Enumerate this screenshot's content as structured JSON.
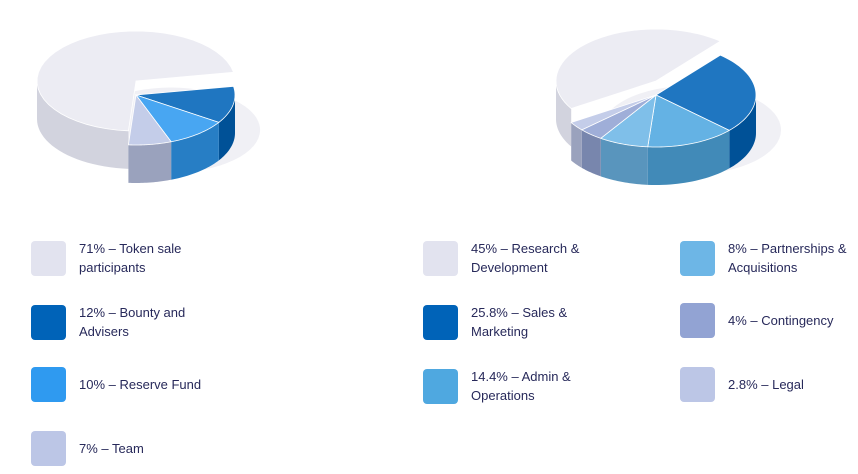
{
  "chart_data": [
    {
      "type": "pie",
      "style": "3d",
      "legend_position": "bottom",
      "slices": [
        {
          "label": "71% – Token sale participants",
          "value": 71,
          "color": "#e2e3ef"
        },
        {
          "label": "12% – Bounty and Advisers",
          "value": 12,
          "color": "#0063b8"
        },
        {
          "label": "10% – Reserve Fund",
          "value": 10,
          "color": "#2f9af0"
        },
        {
          "label": "7% – Team",
          "value": 7,
          "color": "#bcc6e6"
        }
      ]
    },
    {
      "type": "pie",
      "style": "3d",
      "legend_position": "bottom",
      "slices": [
        {
          "label": "45% – Research & Development",
          "value": 45,
          "color": "#e2e3ef"
        },
        {
          "label": "25.8% – Sales & Marketing",
          "value": 25.8,
          "color": "#0063b8"
        },
        {
          "label": "14.4% – Admin & Operations",
          "value": 14.4,
          "color": "#4fa8e0"
        },
        {
          "label": "8% – Partnerships & Acquisitions",
          "value": 8,
          "color": "#6db6e6"
        },
        {
          "label": "4% – Contingency",
          "value": 4,
          "color": "#92a3d3"
        },
        {
          "label": "2.8% – Legal",
          "value": 2.8,
          "color": "#bcc6e6"
        }
      ]
    }
  ]
}
